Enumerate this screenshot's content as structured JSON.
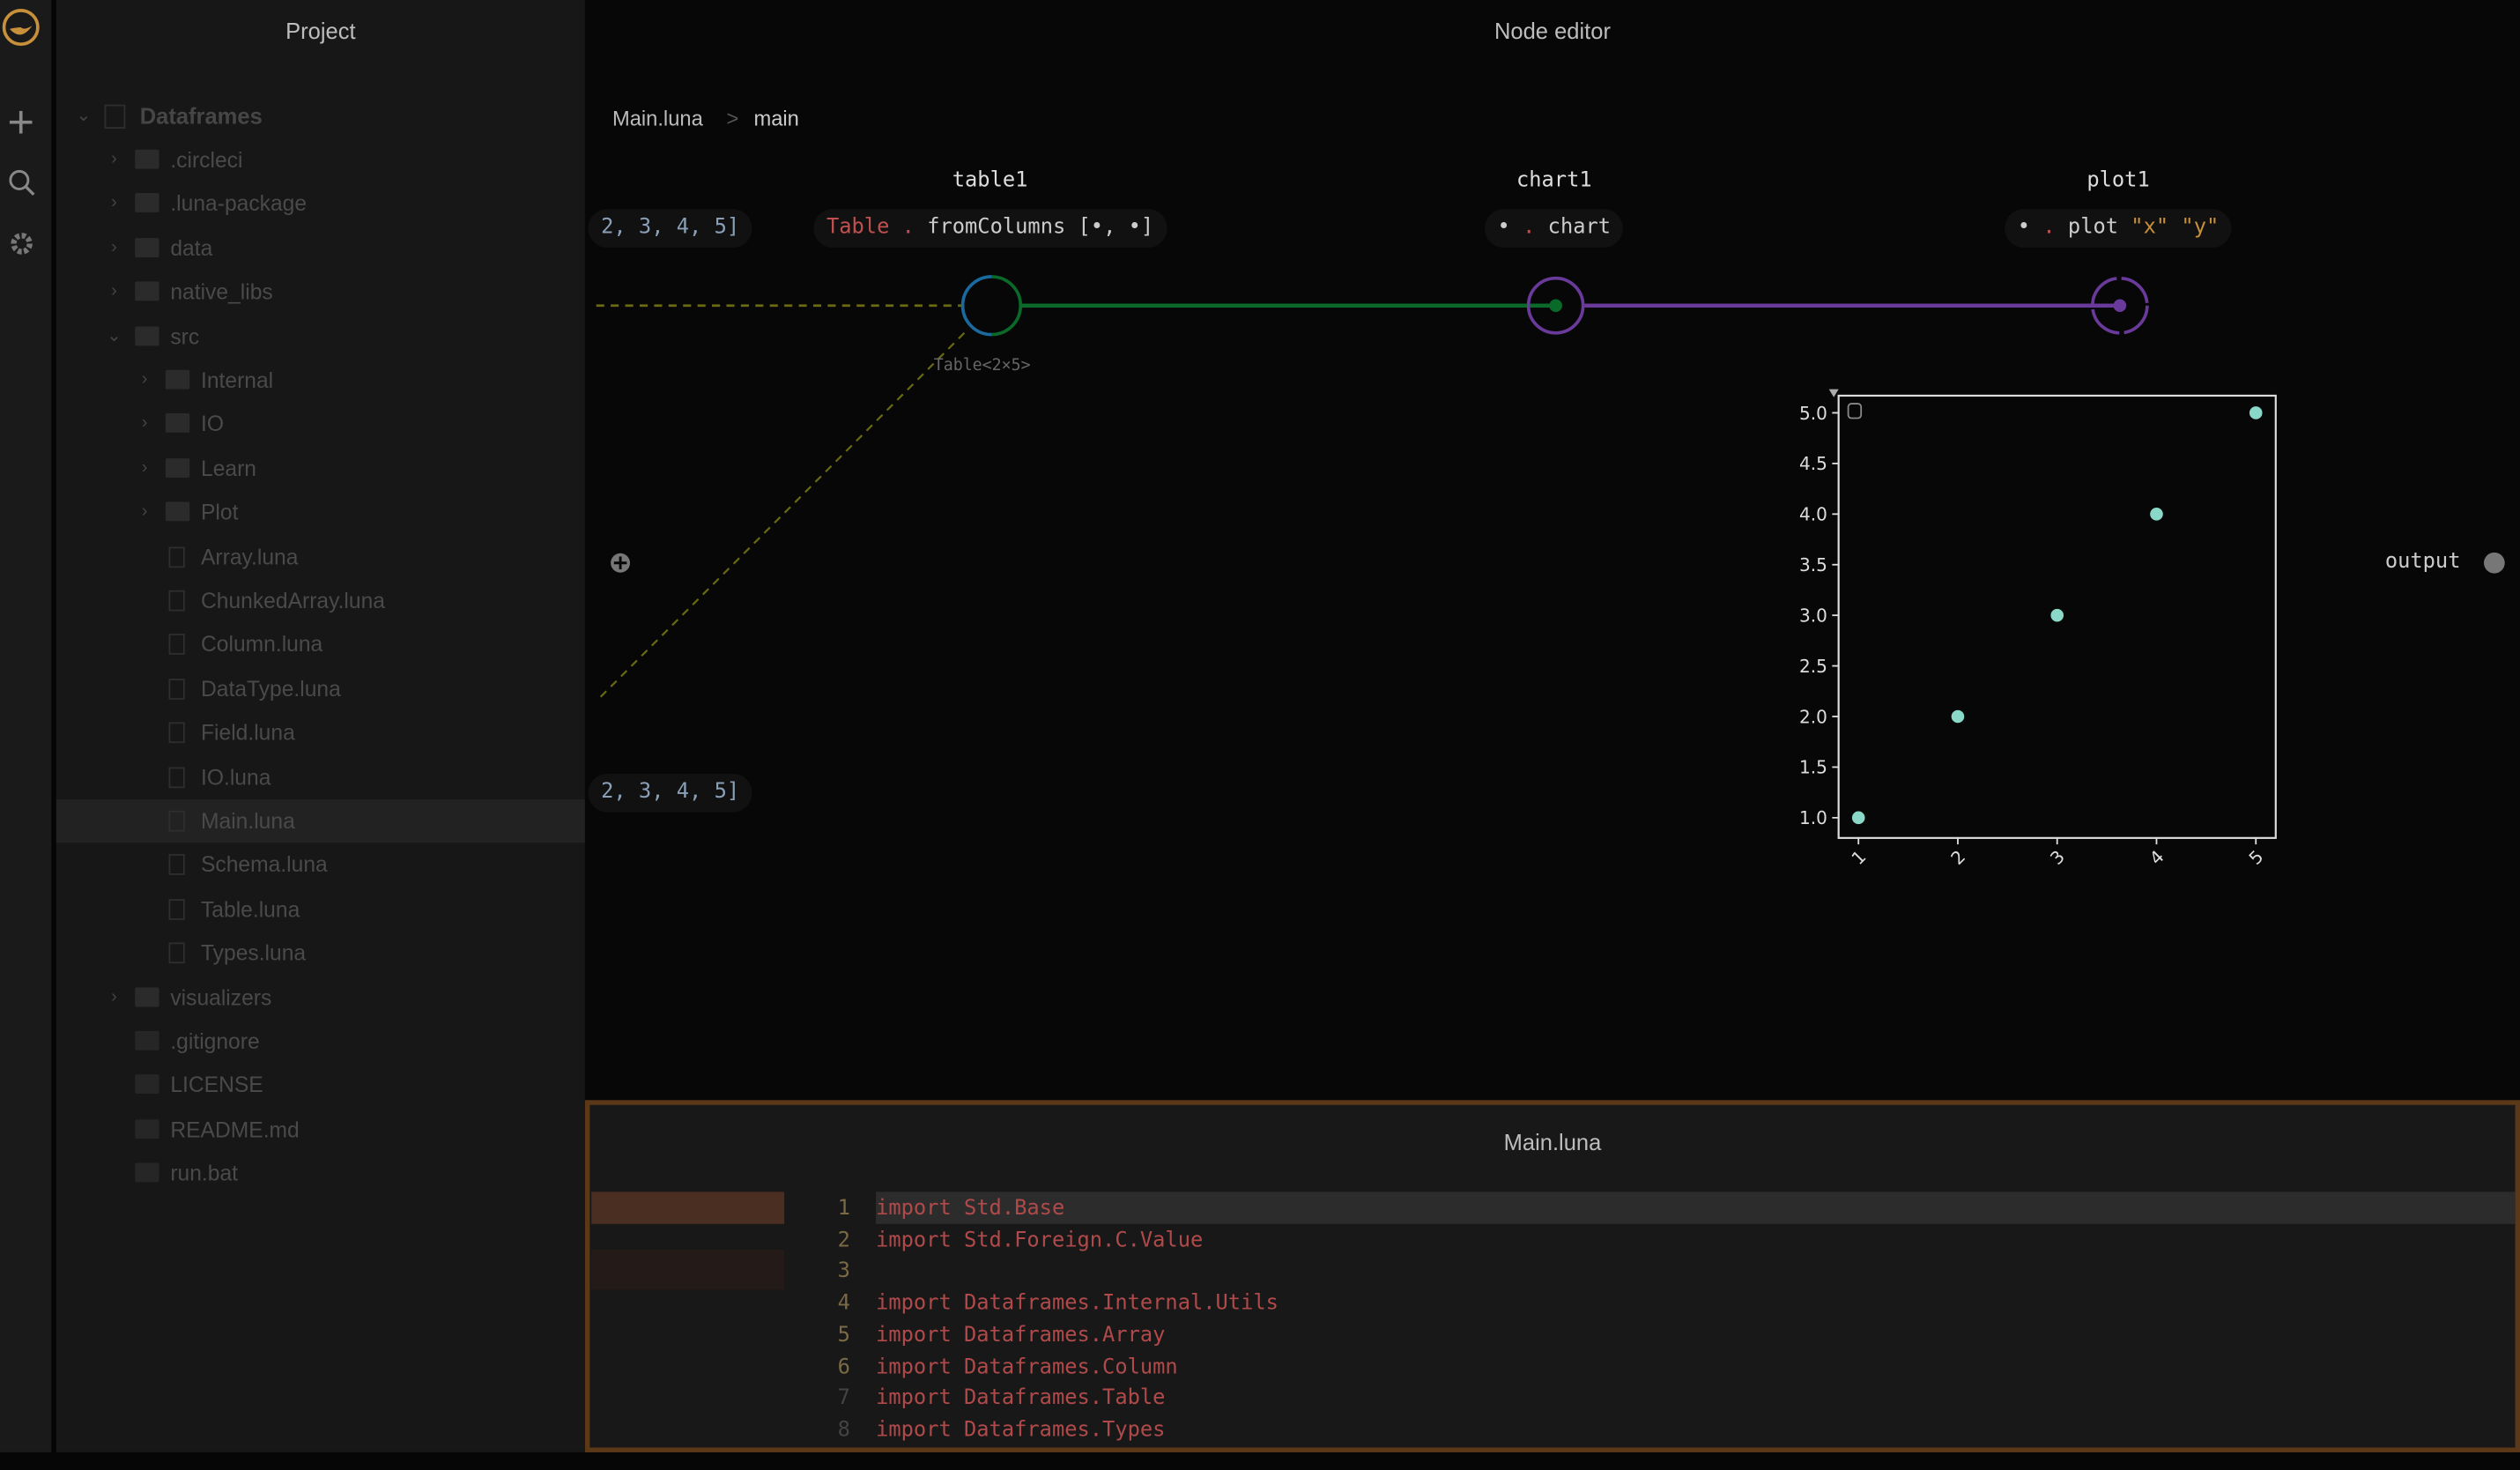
{
  "app": {
    "logo": "luna-logo",
    "accent": "#c8903a"
  },
  "toolbar": {
    "icons": [
      "plus-icon",
      "search-icon",
      "gear-icon"
    ]
  },
  "sidebar": {
    "title": "Project",
    "root": "Dataframes",
    "items": [
      {
        "label": ".circleci",
        "type": "folder",
        "level": 1,
        "expanded": false
      },
      {
        "label": ".luna-package",
        "type": "folder",
        "level": 1,
        "expanded": false
      },
      {
        "label": "data",
        "type": "folder",
        "level": 1,
        "expanded": false
      },
      {
        "label": "native_libs",
        "type": "folder",
        "level": 1,
        "expanded": false
      },
      {
        "label": "src",
        "type": "folder",
        "level": 1,
        "expanded": true
      },
      {
        "label": "Internal",
        "type": "folder",
        "level": 2,
        "expanded": false
      },
      {
        "label": "IO",
        "type": "folder",
        "level": 2,
        "expanded": false
      },
      {
        "label": "Learn",
        "type": "folder",
        "level": 2,
        "expanded": false
      },
      {
        "label": "Plot",
        "type": "folder",
        "level": 2,
        "expanded": false
      },
      {
        "label": "Array.luna",
        "type": "file",
        "level": 2
      },
      {
        "label": "ChunkedArray.luna",
        "type": "file",
        "level": 2
      },
      {
        "label": "Column.luna",
        "type": "file",
        "level": 2
      },
      {
        "label": "DataType.luna",
        "type": "file",
        "level": 2
      },
      {
        "label": "Field.luna",
        "type": "file",
        "level": 2
      },
      {
        "label": "IO.luna",
        "type": "file",
        "level": 2
      },
      {
        "label": "Main.luna",
        "type": "file",
        "level": 2,
        "selected": true
      },
      {
        "label": "Schema.luna",
        "type": "file",
        "level": 2
      },
      {
        "label": "Table.luna",
        "type": "file",
        "level": 2
      },
      {
        "label": "Types.luna",
        "type": "file",
        "level": 2
      },
      {
        "label": "visualizers",
        "type": "folder",
        "level": 1,
        "expanded": false
      },
      {
        "label": ".gitignore",
        "type": "git",
        "level": 1
      },
      {
        "label": "LICENSE",
        "type": "text",
        "level": 1
      },
      {
        "label": "README.md",
        "type": "text",
        "level": 1
      },
      {
        "label": "run.bat",
        "type": "windows",
        "level": 1
      }
    ]
  },
  "node_editor": {
    "title": "Node editor",
    "breadcrumb": [
      "Main.luna",
      ">",
      "main"
    ],
    "input_pill_1": "2, 3, 4, 5]",
    "input_pill_2": "2, 3, 4, 5]",
    "nodes": [
      {
        "name": "table1",
        "expr": [
          {
            "t": "Table",
            "c": "#c05050"
          },
          {
            "t": " . ",
            "c": "#c05050"
          },
          {
            "t": "fromColumns [•, •]",
            "c": "#ccc"
          }
        ],
        "type_label": "Table<2×5>"
      },
      {
        "name": "chart1",
        "expr": [
          {
            "t": "• ",
            "c": "#ccc"
          },
          {
            "t": ". ",
            "c": "#c05050"
          },
          {
            "t": "chart",
            "c": "#ccc"
          }
        ]
      },
      {
        "name": "plot1",
        "expr": [
          {
            "t": "• ",
            "c": "#ccc"
          },
          {
            "t": ". ",
            "c": "#c05050"
          },
          {
            "t": "plot ",
            "c": "#ccc"
          },
          {
            "t": "\"x\" \"y\"",
            "c": "#c8903a"
          }
        ]
      }
    ],
    "output_label": "output",
    "colors": {
      "table_edge": "#0a6a2a",
      "chart_edge": "#6a3a9a",
      "input_edge": "#6a6a10",
      "port_in": "#1a6aa0"
    }
  },
  "chart_data": {
    "type": "scatter",
    "x": [
      1,
      2,
      3,
      4,
      5
    ],
    "y": [
      1,
      2,
      3,
      4,
      5
    ],
    "xlim": [
      0.8,
      5.2
    ],
    "ylim": [
      0.8,
      5.17
    ],
    "xticks": [
      "1",
      "2",
      "3",
      "4",
      "5"
    ],
    "yticks": [
      "1.0",
      "1.5",
      "2.0",
      "2.5",
      "3.0",
      "3.5",
      "4.0",
      "4.5",
      "5.0"
    ],
    "marker_color": "#8ad8c8",
    "grid": false
  },
  "editor": {
    "title": "Main.luna",
    "lines": [
      "import Std.Base",
      "import Std.Foreign.C.Value",
      "",
      "import Dataframes.Internal.Utils",
      "import Dataframes.Array",
      "import Dataframes.Column",
      "import Dataframes.Table",
      "import Dataframes.Types"
    ],
    "line_numbers": [
      "1",
      "2",
      "3",
      "4",
      "5",
      "6",
      "7",
      "8"
    ]
  }
}
